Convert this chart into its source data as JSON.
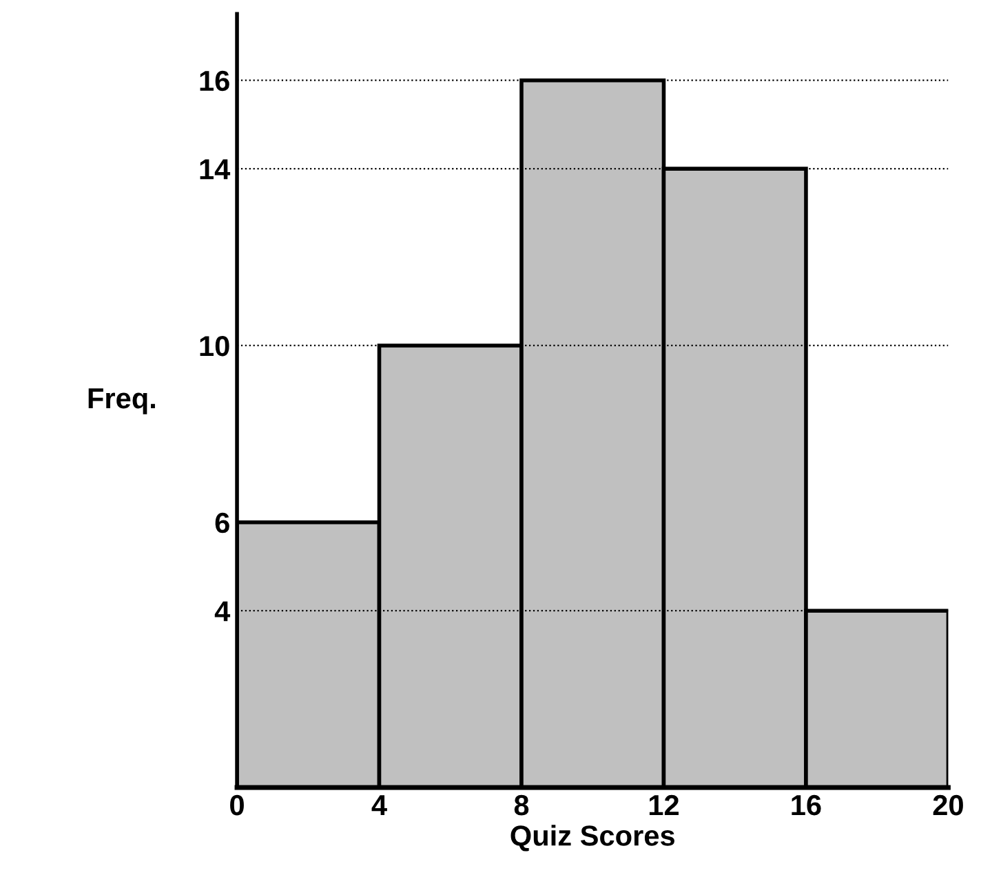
{
  "chart_data": {
    "type": "histogram",
    "xlabel": "Quiz Scores",
    "ylabel": "Freq.",
    "bins": [
      0,
      4,
      8,
      12,
      16,
      20
    ],
    "values": [
      6,
      10,
      16,
      14,
      4
    ],
    "color": "#c0c0c0",
    "xlim": [
      0,
      20
    ],
    "xticks": [
      0,
      4,
      8,
      12,
      16,
      20
    ],
    "ylim": [
      0,
      17.5
    ],
    "yticks": [
      4,
      6,
      10,
      14,
      16
    ],
    "ref_lines": [
      {
        "axis": "y",
        "value": 16,
        "line_style": "dotted"
      },
      {
        "axis": "y",
        "value": 14,
        "line_style": "dotted"
      },
      {
        "axis": "y",
        "value": 10,
        "line_style": "dotted"
      },
      {
        "axis": "y",
        "value": 4,
        "line_style": "dotted"
      }
    ],
    "grid": false,
    "legend": false
  }
}
